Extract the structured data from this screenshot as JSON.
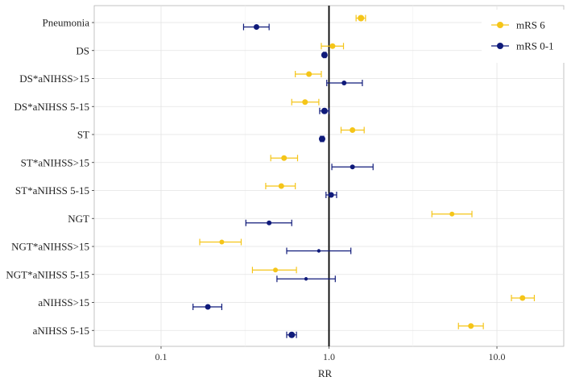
{
  "chart_data": {
    "type": "scatter",
    "subtype": "forest-plot",
    "title": "",
    "xlabel": "RR",
    "ylabel": "",
    "xscale": "log10",
    "xlim": [
      0.04,
      25
    ],
    "x_ticks": [
      0.1,
      1.0,
      10.0
    ],
    "x_tick_labels": [
      "0.1",
      "1.0",
      "10.0"
    ],
    "reference_line": 1.0,
    "grid": true,
    "legend_position": "top-right",
    "categories": [
      "Pneumonia",
      "DS",
      "DS*aNIHSS>15",
      "DS*aNIHSS 5-15",
      "ST",
      "ST*aNIHSS>15",
      "ST*aNIHSS 5-15",
      "NGT",
      "NGT*aNIHSS>15",
      "NGT*aNIHSS 5-15",
      "aNIHSS>15",
      "aNIHSS 5-15"
    ],
    "series": [
      {
        "name": "mRS 6",
        "color": "#F5C518",
        "values": [
          1.55,
          1.05,
          0.76,
          0.72,
          1.38,
          0.54,
          0.52,
          5.4,
          0.23,
          0.48,
          14.2,
          7.0
        ],
        "lower": [
          1.45,
          0.9,
          0.63,
          0.6,
          1.18,
          0.45,
          0.42,
          4.1,
          0.17,
          0.35,
          12.2,
          5.9
        ],
        "upper": [
          1.65,
          1.22,
          0.9,
          0.87,
          1.62,
          0.65,
          0.63,
          7.1,
          0.3,
          0.64,
          16.7,
          8.3
        ]
      },
      {
        "name": "mRS 0-1",
        "color": "#0F1A7A",
        "values": [
          0.37,
          0.94,
          1.23,
          0.94,
          0.91,
          1.38,
          1.03,
          0.44,
          0.87,
          0.73,
          0.19,
          0.6
        ],
        "lower": [
          0.31,
          0.93,
          0.97,
          0.88,
          0.89,
          1.04,
          0.96,
          0.32,
          0.56,
          0.49,
          0.155,
          0.56
        ],
        "upper": [
          0.44,
          0.96,
          1.58,
          1.0,
          0.93,
          1.83,
          1.11,
          0.6,
          1.35,
          1.09,
          0.23,
          0.64
        ]
      }
    ]
  }
}
